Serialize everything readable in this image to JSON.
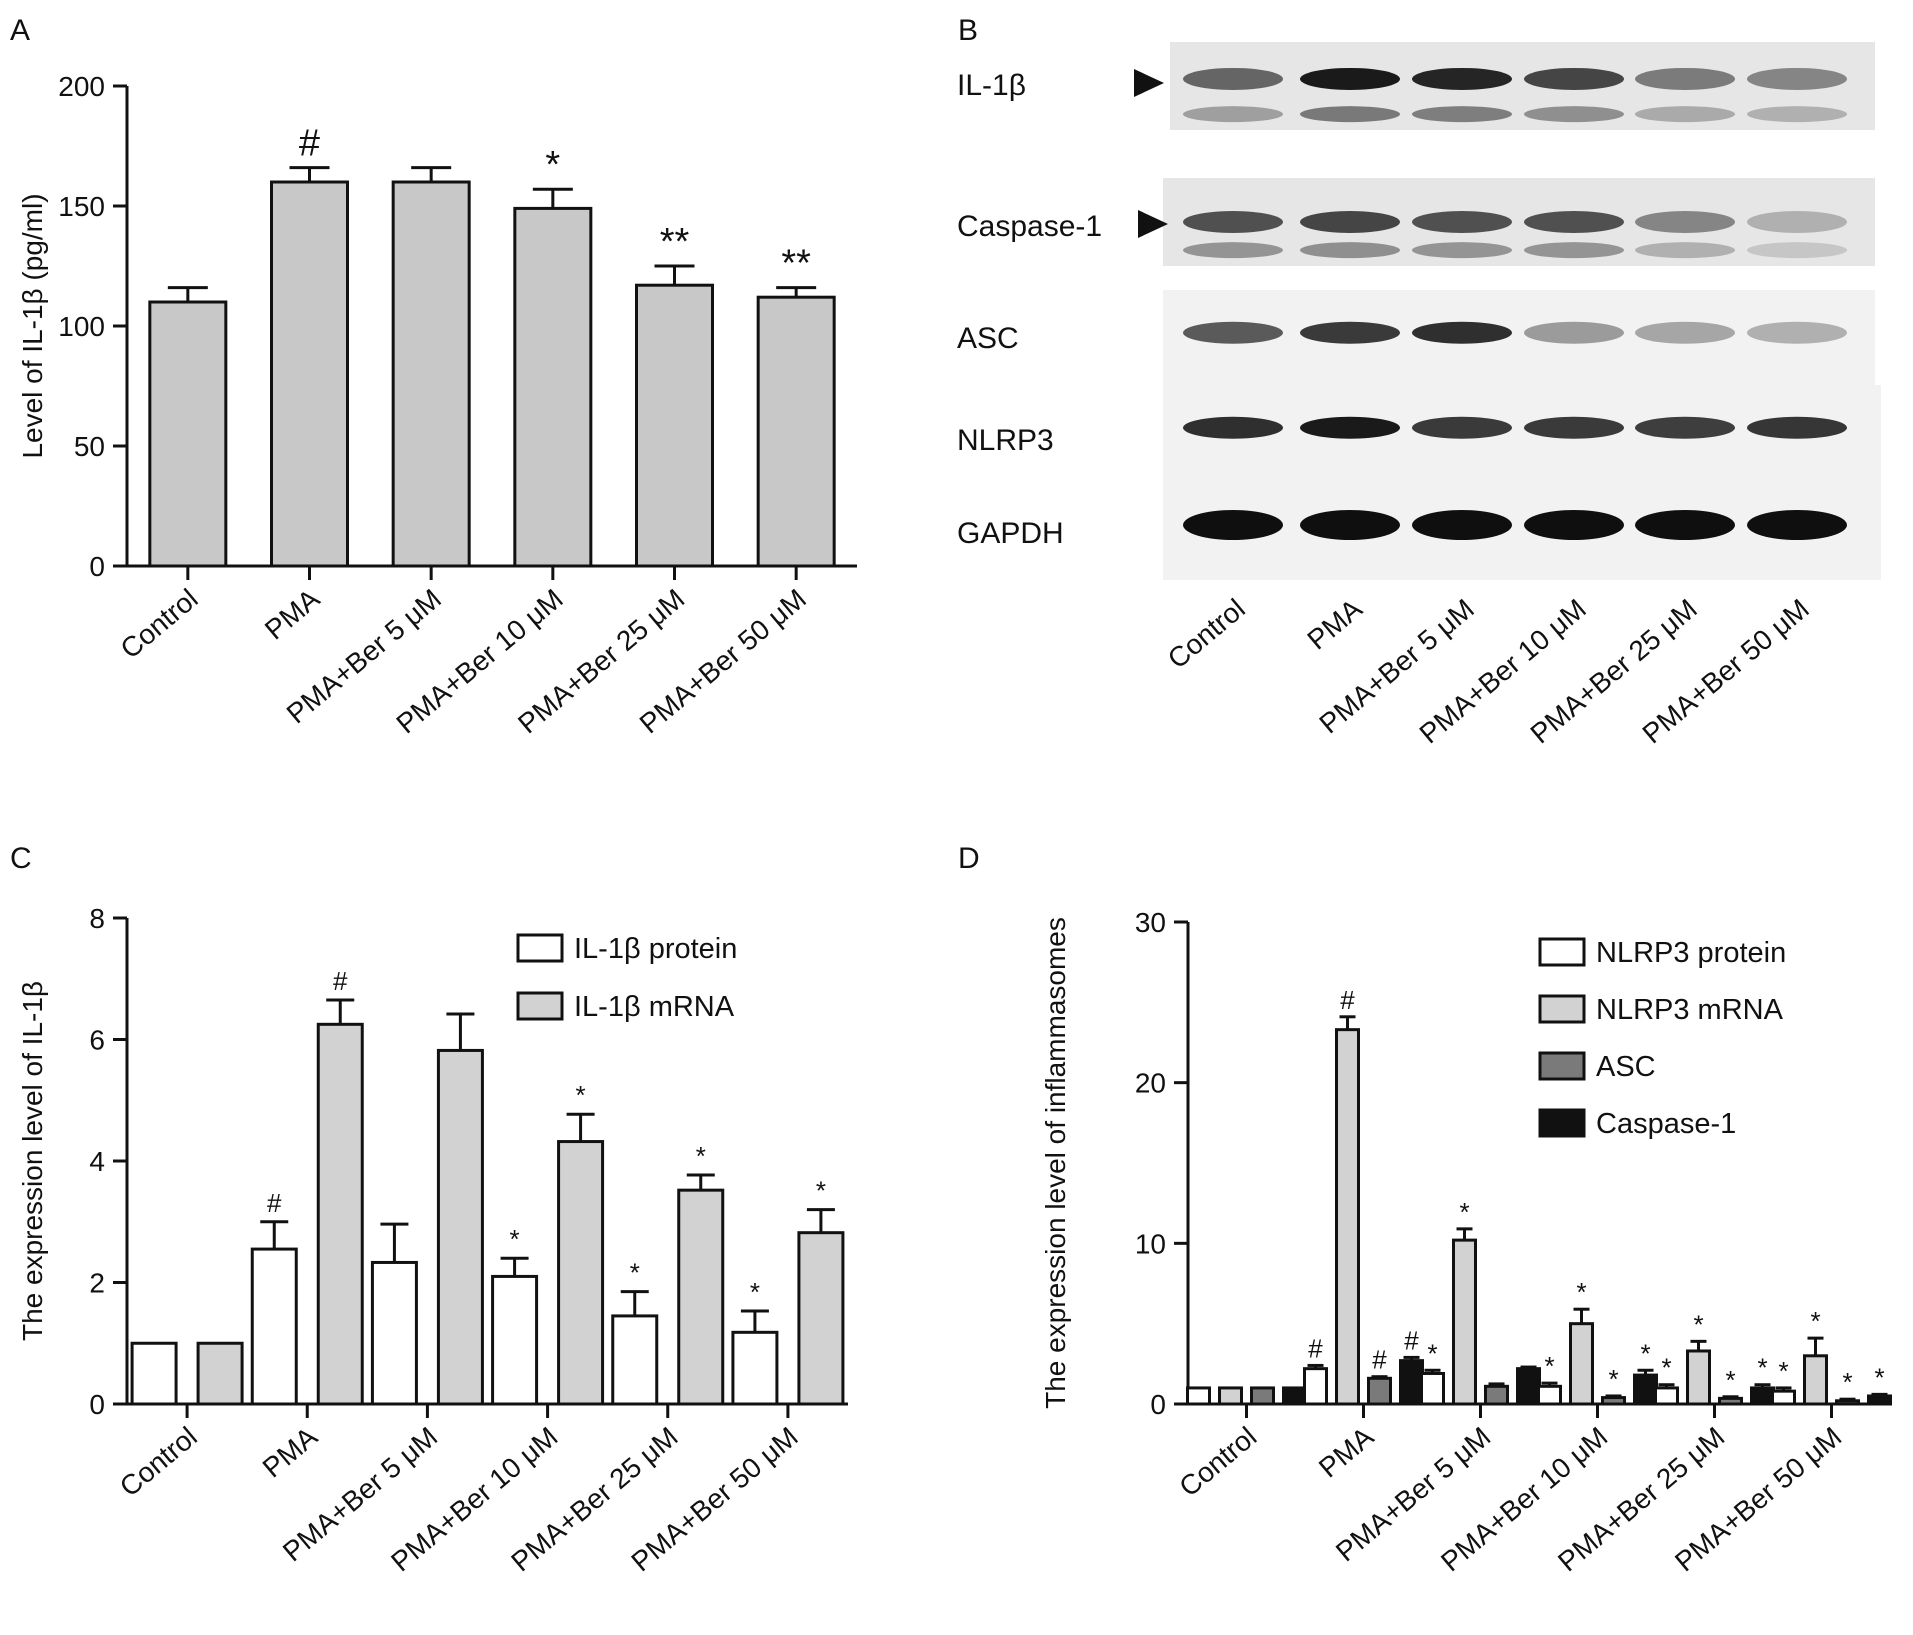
{
  "panels": {
    "a": "A",
    "b": "B",
    "c": "C",
    "d": "D"
  },
  "colors": {
    "bar_gray": "#c8c8c8",
    "light_gray": "#d2d2d2",
    "mid_gray": "#7a7a7a",
    "black": "#111111",
    "white": "#ffffff"
  },
  "chart_data": [
    {
      "id": "A",
      "type": "bar",
      "categories": [
        "Control",
        "PMA",
        "PMA+Ber 5 μM",
        "PMA+Ber 10 μM",
        "PMA+Ber 25 μM",
        "PMA+Ber 50 μM"
      ],
      "series": [
        {
          "values": [
            110,
            160,
            160,
            149,
            117,
            112
          ],
          "errors": [
            6,
            6,
            6,
            8,
            8,
            4
          ],
          "annotations": [
            "",
            "#",
            "",
            "*",
            "**",
            "**"
          ]
        }
      ],
      "ylabel": "Level of IL-1β (pg/ml)",
      "ylim": [
        0,
        200
      ],
      "yticks": [
        0,
        50,
        100,
        150,
        200
      ]
    },
    {
      "id": "C",
      "type": "bar",
      "categories": [
        "Control",
        "PMA",
        "PMA+Ber 5 μM",
        "PMA+Ber 10 μM",
        "PMA+Ber 25 μM",
        "PMA+Ber 50 μM"
      ],
      "series": [
        {
          "name": "IL-1β protein",
          "values": [
            1,
            2.55,
            2.33,
            2.1,
            1.45,
            1.18
          ],
          "errors": [
            0,
            0.45,
            0.63,
            0.3,
            0.4,
            0.35
          ],
          "annotations": [
            "",
            "#",
            "",
            "*",
            "*",
            "*"
          ]
        },
        {
          "name": "IL-1β mRNA",
          "values": [
            1,
            6.25,
            5.82,
            4.32,
            3.52,
            2.82
          ],
          "errors": [
            0,
            0.4,
            0.6,
            0.45,
            0.25,
            0.38
          ],
          "annotations": [
            "",
            "#",
            "",
            "*",
            "*",
            "*"
          ]
        }
      ],
      "ylabel": "The expression level of IL-1β",
      "ylim": [
        0,
        8
      ],
      "yticks": [
        0,
        2,
        4,
        6,
        8
      ],
      "legend": "top-right"
    },
    {
      "id": "D",
      "type": "bar",
      "categories": [
        "Control",
        "PMA",
        "PMA+Ber 5 μM",
        "PMA+Ber 10 μM",
        "PMA+Ber 25 μM",
        "PMA+Ber 50 μM"
      ],
      "series": [
        {
          "name": "NLRP3 protein",
          "values": [
            1,
            2.2,
            1.9,
            1.1,
            1.0,
            0.8
          ],
          "errors": [
            0,
            0.2,
            0.2,
            0.2,
            0.2,
            0.2
          ],
          "annotations": [
            "",
            "#",
            "*",
            "*",
            "*",
            "*"
          ]
        },
        {
          "name": "NLRP3 mRNA",
          "values": [
            1,
            23.3,
            10.2,
            5.0,
            3.3,
            3.0
          ],
          "errors": [
            0,
            0.8,
            0.7,
            0.9,
            0.6,
            1.1
          ],
          "annotations": [
            "",
            "#",
            "*",
            "*",
            "*",
            "*"
          ]
        },
        {
          "name": "ASC",
          "values": [
            1,
            1.6,
            1.1,
            0.4,
            0.35,
            0.2
          ],
          "errors": [
            0,
            0.1,
            0.15,
            0.1,
            0.1,
            0.1
          ],
          "annotations": [
            "",
            "#",
            "",
            "*",
            "*",
            "*"
          ]
        },
        {
          "name": "Caspase-1",
          "values": [
            1,
            2.7,
            2.2,
            1.8,
            1.0,
            0.5
          ],
          "errors": [
            0,
            0.2,
            0.1,
            0.3,
            0.2,
            0.1
          ],
          "annotations": [
            "",
            "#",
            "",
            "*",
            "*",
            "*"
          ]
        }
      ],
      "ylabel": "The expression level of inflammasomes",
      "ylim": [
        0,
        30
      ],
      "yticks": [
        0,
        10,
        20,
        30
      ],
      "legend": "top-right"
    }
  ],
  "blot": {
    "lanes": [
      "Control",
      "PMA",
      "PMA+Ber 5 μM",
      "PMA+Ber 10 μM",
      "PMA+Ber 25 μM",
      "PMA+Ber 50 μM"
    ],
    "rows": [
      {
        "label": "IL-1β",
        "arrow": true,
        "intensity": [
          0.6,
          0.95,
          0.9,
          0.75,
          0.5,
          0.45
        ]
      },
      {
        "label": "Caspase-1",
        "arrow": true,
        "intensity": [
          0.7,
          0.75,
          0.7,
          0.7,
          0.45,
          0.25
        ]
      },
      {
        "label": "ASC",
        "arrow": false,
        "intensity": [
          0.65,
          0.8,
          0.85,
          0.35,
          0.3,
          0.25
        ]
      },
      {
        "label": "NLRP3",
        "arrow": false,
        "intensity": [
          0.85,
          0.95,
          0.8,
          0.8,
          0.78,
          0.82
        ]
      },
      {
        "label": "GAPDH",
        "arrow": false,
        "intensity": [
          1,
          1,
          1,
          1,
          1,
          1
        ]
      }
    ]
  }
}
